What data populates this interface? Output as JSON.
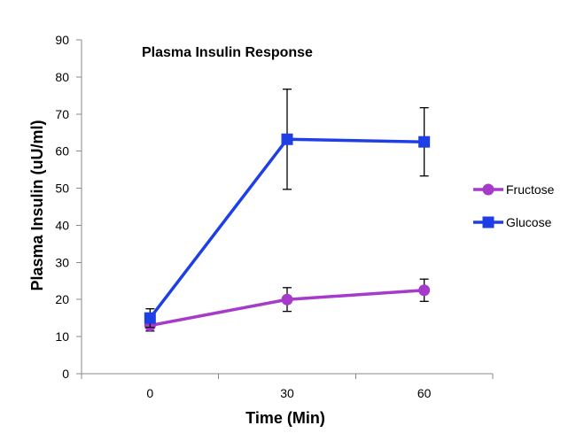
{
  "chart_data": {
    "type": "line",
    "title": "Plasma Insulin Response",
    "xlabel": "Time (Min)",
    "ylabel": "Plasma Insulin (uU/ml)",
    "categories": [
      "0",
      "30",
      "60"
    ],
    "ylim": [
      0,
      90
    ],
    "yticks": [
      0,
      10,
      20,
      30,
      40,
      50,
      60,
      70,
      80,
      90
    ],
    "grid": false,
    "legend": "right",
    "series": [
      {
        "name": "Fructose",
        "color": "#A63ACB",
        "marker": "circle",
        "values": [
          13,
          20,
          22.5
        ],
        "errors": [
          1.5,
          3.2,
          3.0
        ]
      },
      {
        "name": "Glucose",
        "color": "#1F3FE6",
        "marker": "square",
        "values": [
          15,
          63.2,
          62.5
        ],
        "errors": [
          2.5,
          13.5,
          9.2
        ]
      }
    ]
  }
}
